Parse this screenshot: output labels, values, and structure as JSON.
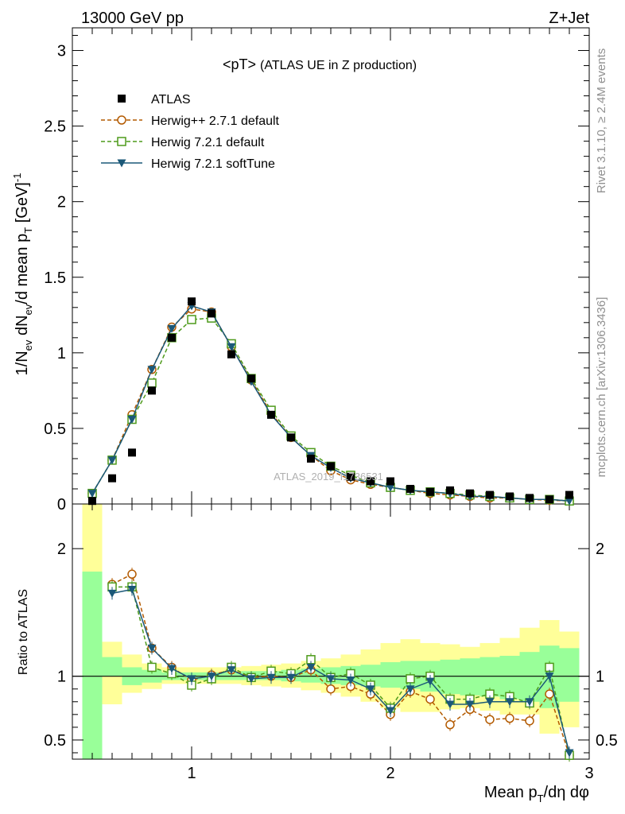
{
  "header": {
    "left": "13000 GeV pp",
    "right": "Z+Jet"
  },
  "plot_title": "<pT>",
  "plot_subtitle": "(ATLAS UE in Z production)",
  "y_axis_label": "1/N_ev dN_ev/d mean p_T [GeV]^-1",
  "x_axis_label": "Mean p_T/dη dφ",
  "ratio_axis_label": "Ratio to ATLAS",
  "side_texts": {
    "rivet": "Rivet 3.1.10, ≥ 2.4M events",
    "mcplots": "mcplots.cern.ch [arXiv:1306.3436]"
  },
  "watermark": "ATLAS_2019_I1736531",
  "colors": {
    "atlas": "#000000",
    "herwigpp": "#b35a00",
    "herwig721": "#4d9a1a",
    "softtune": "#1b5878",
    "band_inner": "#99ff99",
    "band_outer": "#ffff99"
  },
  "legend": [
    {
      "key": "atlas",
      "label": "ATLAS",
      "marker": "square-filled",
      "line": "none"
    },
    {
      "key": "herwigpp",
      "label": "Herwig++ 2.7.1 default",
      "marker": "circle-open",
      "line": "dashed"
    },
    {
      "key": "herwig721",
      "label": "Herwig 7.2.1 default",
      "marker": "square-open",
      "line": "dashed"
    },
    {
      "key": "softtune",
      "label": "Herwig 7.2.1 softTune",
      "marker": "triangle-down-filled",
      "line": "solid"
    }
  ],
  "chart_data": [
    {
      "type": "scatter",
      "panel": "main",
      "xlim": [
        0.4,
        3.0
      ],
      "ylim": [
        0,
        3.15
      ],
      "x_ticks": [
        1,
        2,
        3
      ],
      "y_ticks": [
        0,
        0.5,
        1,
        1.5,
        2,
        2.5,
        3
      ],
      "x": [
        0.5,
        0.6,
        0.7,
        0.8,
        0.9,
        1.0,
        1.1,
        1.2,
        1.3,
        1.4,
        1.5,
        1.6,
        1.7,
        1.8,
        1.9,
        2.0,
        2.1,
        2.2,
        2.3,
        2.4,
        2.5,
        2.6,
        2.7,
        2.8,
        2.9
      ],
      "series": [
        {
          "name": "ATLAS",
          "key": "atlas",
          "values": [
            0.02,
            0.17,
            0.34,
            0.75,
            1.1,
            1.34,
            1.26,
            0.99,
            0.83,
            0.59,
            0.44,
            0.3,
            0.25,
            0.18,
            0.15,
            0.15,
            0.1,
            0.08,
            0.09,
            0.07,
            0.06,
            0.05,
            0.04,
            0.03,
            0.06
          ]
        },
        {
          "name": "Herwig++ 2.7.1 default",
          "key": "herwigpp",
          "values": [
            0.07,
            0.29,
            0.59,
            0.89,
            1.17,
            1.29,
            1.27,
            1.04,
            0.82,
            0.6,
            0.44,
            0.32,
            0.22,
            0.16,
            0.13,
            0.11,
            0.09,
            0.07,
            0.06,
            0.05,
            0.04,
            0.04,
            0.03,
            0.025,
            0.02
          ]
        },
        {
          "name": "Herwig 7.2.1 default",
          "key": "herwig721",
          "values": [
            0.07,
            0.29,
            0.56,
            0.8,
            1.1,
            1.22,
            1.23,
            1.06,
            0.83,
            0.62,
            0.45,
            0.34,
            0.25,
            0.19,
            0.14,
            0.11,
            0.09,
            0.08,
            0.07,
            0.06,
            0.05,
            0.04,
            0.03,
            0.03,
            0.02
          ]
        },
        {
          "name": "Herwig 7.2.1 softTune",
          "key": "softtune",
          "values": [
            0.07,
            0.29,
            0.56,
            0.89,
            1.16,
            1.31,
            1.27,
            1.04,
            0.81,
            0.59,
            0.44,
            0.32,
            0.24,
            0.17,
            0.14,
            0.11,
            0.09,
            0.08,
            0.07,
            0.05,
            0.05,
            0.04,
            0.03,
            0.03,
            0.02
          ]
        }
      ]
    },
    {
      "type": "line",
      "panel": "ratio",
      "xlim": [
        0.4,
        3.0
      ],
      "ylim": [
        0.35,
        2.35
      ],
      "x_ticks": [
        1,
        2,
        3
      ],
      "y_ticks": [
        0.5,
        1,
        2
      ],
      "reference": 1.0,
      "x": [
        0.6,
        0.7,
        0.8,
        0.9,
        1.0,
        1.1,
        1.2,
        1.3,
        1.4,
        1.5,
        1.6,
        1.7,
        1.8,
        1.9,
        2.0,
        2.1,
        2.2,
        2.3,
        2.4,
        2.5,
        2.6,
        2.7,
        2.8,
        2.9
      ],
      "series": [
        {
          "name": "Herwig++ 2.7.1 default",
          "key": "herwigpp",
          "values": [
            1.72,
            1.8,
            1.22,
            1.07,
            0.97,
            1.01,
            1.05,
            0.99,
            1.0,
            0.99,
            1.05,
            0.9,
            0.92,
            0.86,
            0.7,
            0.88,
            0.82,
            0.62,
            0.74,
            0.66,
            0.67,
            0.65,
            0.86,
            0.38
          ]
        },
        {
          "name": "Herwig 7.2.1 default",
          "key": "herwig721",
          "values": [
            1.7,
            1.7,
            1.07,
            1.02,
            0.93,
            0.98,
            1.07,
            0.99,
            1.04,
            1.02,
            1.13,
            0.99,
            1.02,
            0.93,
            0.75,
            0.98,
            1.0,
            0.82,
            0.82,
            0.86,
            0.84,
            0.79,
            1.07,
            0.38
          ]
        },
        {
          "name": "Herwig 7.2.1 softTune",
          "key": "softtune",
          "values": [
            1.65,
            1.68,
            1.22,
            1.06,
            0.98,
            1.0,
            1.05,
            0.98,
            0.99,
            0.99,
            1.07,
            0.98,
            0.97,
            0.9,
            0.73,
            0.9,
            0.96,
            0.78,
            0.78,
            0.8,
            0.8,
            0.8,
            1.0,
            0.4
          ]
        }
      ],
      "band_x_edges": [
        0.45,
        0.55,
        0.65,
        0.75,
        0.85,
        0.95,
        1.05,
        1.15,
        1.25,
        1.35,
        1.45,
        1.55,
        1.65,
        1.75,
        1.85,
        1.95,
        2.05,
        2.15,
        2.25,
        2.35,
        2.45,
        2.55,
        2.65,
        2.75,
        2.85,
        2.95
      ],
      "band_inner": {
        "low": [
          0.0,
          1.0,
          0.93,
          0.95,
          0.97,
          0.97,
          0.97,
          0.97,
          0.97,
          0.97,
          0.96,
          0.95,
          0.94,
          0.93,
          0.92,
          0.91,
          0.9,
          0.88,
          0.86,
          0.85,
          0.84,
          0.82,
          0.8,
          0.75,
          0.8
        ],
        "high": [
          1.82,
          1.15,
          1.07,
          1.05,
          1.03,
          1.03,
          1.03,
          1.03,
          1.04,
          1.04,
          1.05,
          1.06,
          1.07,
          1.08,
          1.09,
          1.11,
          1.12,
          1.12,
          1.13,
          1.14,
          1.15,
          1.16,
          1.19,
          1.24,
          1.22
        ]
      },
      "band_outer": {
        "low": [
          0.0,
          0.78,
          0.87,
          0.9,
          0.94,
          0.94,
          0.94,
          0.94,
          0.93,
          0.92,
          0.91,
          0.89,
          0.87,
          0.84,
          0.8,
          0.75,
          0.72,
          0.72,
          0.74,
          0.75,
          0.73,
          0.7,
          0.7,
          0.55,
          0.6
        ],
        "high": [
          2.35,
          1.27,
          1.17,
          1.1,
          1.07,
          1.07,
          1.07,
          1.07,
          1.08,
          1.09,
          1.1,
          1.12,
          1.14,
          1.17,
          1.21,
          1.26,
          1.29,
          1.26,
          1.25,
          1.23,
          1.26,
          1.3,
          1.38,
          1.44,
          1.35
        ]
      }
    }
  ]
}
